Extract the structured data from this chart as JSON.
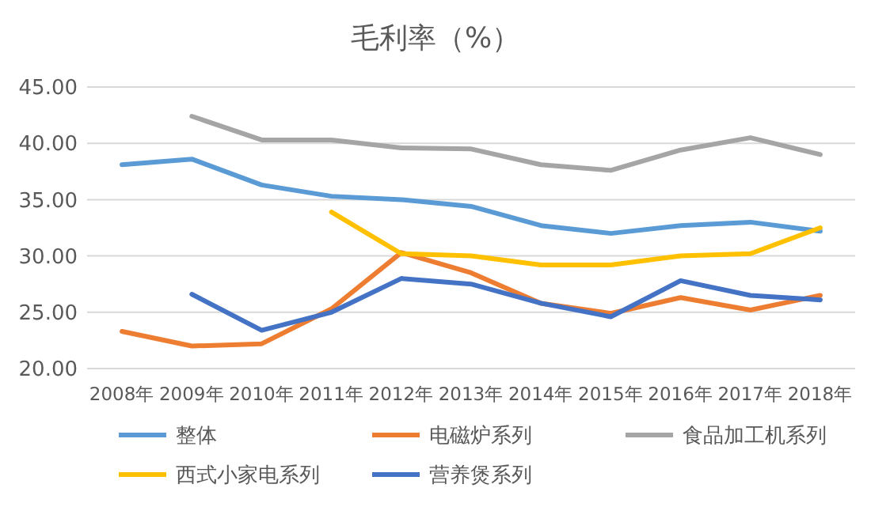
{
  "chart_data": {
    "type": "line",
    "title": "毛利率（%）",
    "categories": [
      "2008年",
      "2009年",
      "2010年",
      "2011年",
      "2012年",
      "2013年",
      "2014年",
      "2015年",
      "2016年",
      "2017年",
      "2018年"
    ],
    "series": [
      {
        "name": "整体",
        "color": "#5b9bd5",
        "values": [
          38.1,
          38.6,
          36.3,
          35.3,
          35.0,
          34.4,
          32.7,
          32.0,
          32.7,
          33.0,
          32.2
        ]
      },
      {
        "name": "电磁炉系列",
        "color": "#ed7d31",
        "values": [
          23.3,
          22.0,
          22.2,
          25.3,
          30.3,
          28.5,
          25.8,
          24.9,
          26.3,
          25.2,
          26.5
        ]
      },
      {
        "name": "食品加工机系列",
        "color": "#a5a5a5",
        "values": [
          null,
          42.4,
          40.3,
          40.3,
          39.6,
          39.5,
          38.1,
          37.6,
          39.4,
          40.5,
          39.0
        ]
      },
      {
        "name": "西式小家电系列",
        "color": "#ffc000",
        "values": [
          null,
          null,
          null,
          33.9,
          30.2,
          30.0,
          29.2,
          29.2,
          30.0,
          30.2,
          32.5
        ]
      },
      {
        "name": "营养煲系列",
        "color": "#4472c4",
        "values": [
          null,
          26.6,
          23.4,
          25.0,
          28.0,
          27.5,
          25.8,
          24.6,
          27.8,
          26.5,
          26.1
        ]
      }
    ],
    "ylim": [
      20,
      45
    ],
    "yticks": [
      {
        "value": 20,
        "label": "20.00"
      },
      {
        "value": 25,
        "label": "25.00"
      },
      {
        "value": 30,
        "label": "30.00"
      },
      {
        "value": 35,
        "label": "35.00"
      },
      {
        "value": 40,
        "label": "40.00"
      },
      {
        "value": 45,
        "label": "45.00"
      }
    ],
    "grid": "y",
    "legend": "bottom",
    "marker": "none",
    "line_style": "solid"
  }
}
